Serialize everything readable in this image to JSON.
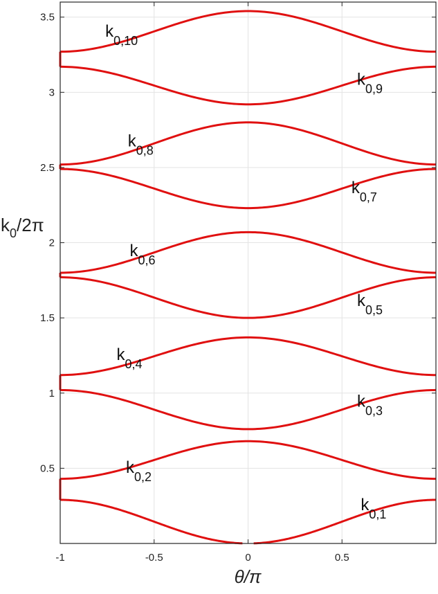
{
  "chart_data": {
    "type": "line",
    "title": "",
    "xlabel": {
      "main": "θ/π"
    },
    "ylabel": {
      "main": "k",
      "sub": "0",
      "rest": "/2π"
    },
    "xlim": [
      -1,
      1
    ],
    "ylim": [
      0,
      3.6
    ],
    "x_ticks": [
      -1,
      -0.5,
      0,
      0.5
    ],
    "x_tick_labels": [
      "-1",
      "-0.5",
      "0",
      "0.5"
    ],
    "y_ticks": [
      0.5,
      1,
      1.5,
      2,
      2.5,
      3,
      3.5
    ],
    "y_tick_labels": [
      "0.5",
      "1",
      "1.5",
      "2",
      "2.5",
      "3",
      "3.5"
    ],
    "grid": true,
    "line_color": "#e01010",
    "bands": [
      {
        "name": "k0,1",
        "label": {
          "main": "k",
          "sub": "0,1"
        },
        "label_anchor": [
          0.6,
          0.22
        ],
        "edge": 0.29,
        "center": 0.0
      },
      {
        "name": "k0,2",
        "label": {
          "main": "k",
          "sub": "0,2"
        },
        "label_anchor": [
          -0.65,
          0.47
        ],
        "edge": 0.43,
        "center": 0.68
      },
      {
        "name": "k0,3",
        "label": {
          "main": "k",
          "sub": "0,3"
        },
        "label_anchor": [
          0.58,
          0.91
        ],
        "edge": 1.02,
        "center": 0.76
      },
      {
        "name": "k0,4",
        "label": {
          "main": "k",
          "sub": "0,4"
        },
        "label_anchor": [
          -0.7,
          1.22
        ],
        "edge": 1.12,
        "center": 1.37
      },
      {
        "name": "k0,5",
        "label": {
          "main": "k",
          "sub": "0,5"
        },
        "label_anchor": [
          0.58,
          1.58
        ],
        "edge": 1.77,
        "center": 1.5
      },
      {
        "name": "k0,6",
        "label": {
          "main": "k",
          "sub": "0,6"
        },
        "label_anchor": [
          -0.63,
          1.91
        ],
        "edge": 1.8,
        "center": 2.07
      },
      {
        "name": "k0,7",
        "label": {
          "main": "k",
          "sub": "0,7"
        },
        "label_anchor": [
          0.55,
          2.33
        ],
        "edge": 2.49,
        "center": 2.23
      },
      {
        "name": "k0,8",
        "label": {
          "main": "k",
          "sub": "0,8"
        },
        "label_anchor": [
          -0.64,
          2.64
        ],
        "edge": 2.52,
        "center": 2.8
      },
      {
        "name": "k0,9",
        "label": {
          "main": "k",
          "sub": "0,9"
        },
        "label_anchor": [
          0.58,
          3.05
        ],
        "edge": 3.17,
        "center": 2.92
      },
      {
        "name": "k0,10",
        "label": {
          "main": "k",
          "sub": "0,10"
        },
        "label_anchor": [
          -0.76,
          3.37
        ],
        "edge": 3.27,
        "center": 3.54
      }
    ]
  }
}
